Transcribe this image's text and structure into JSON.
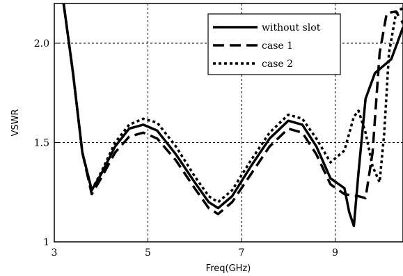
{
  "chart_data": {
    "type": "line",
    "xlabel": "Freq(GHz)",
    "ylabel": "VSWR",
    "xlim": [
      3,
      10.45
    ],
    "ylim": [
      1,
      2.2
    ],
    "x_ticks": [
      3,
      5,
      7,
      9
    ],
    "x_tick_labels": [
      "3",
      "5",
      "7",
      "9"
    ],
    "y_ticks": [
      1,
      1.5,
      2
    ],
    "y_tick_labels": [
      "1",
      "1.5",
      "2.0"
    ],
    "grid": true,
    "legend_position": "top-right",
    "series": [
      {
        "name": "without slot",
        "style": "solid",
        "points": [
          [
            3.2,
            2.2
          ],
          [
            3.4,
            1.85
          ],
          [
            3.6,
            1.45
          ],
          [
            3.8,
            1.26
          ],
          [
            4.0,
            1.34
          ],
          [
            4.3,
            1.48
          ],
          [
            4.6,
            1.57
          ],
          [
            4.9,
            1.59
          ],
          [
            5.2,
            1.56
          ],
          [
            5.6,
            1.44
          ],
          [
            6.0,
            1.3
          ],
          [
            6.3,
            1.2
          ],
          [
            6.5,
            1.17
          ],
          [
            6.8,
            1.23
          ],
          [
            7.2,
            1.38
          ],
          [
            7.6,
            1.52
          ],
          [
            8.0,
            1.61
          ],
          [
            8.3,
            1.59
          ],
          [
            8.6,
            1.48
          ],
          [
            8.9,
            1.32
          ],
          [
            9.2,
            1.27
          ],
          [
            9.3,
            1.15
          ],
          [
            9.4,
            1.08
          ],
          [
            9.5,
            1.35
          ],
          [
            9.65,
            1.72
          ],
          [
            9.85,
            1.85
          ],
          [
            10.05,
            1.89
          ],
          [
            10.2,
            1.92
          ],
          [
            10.45,
            2.08
          ]
        ]
      },
      {
        "name": "case 1",
        "style": "dashed",
        "points": [
          [
            3.2,
            2.2
          ],
          [
            3.4,
            1.85
          ],
          [
            3.6,
            1.45
          ],
          [
            3.8,
            1.24
          ],
          [
            4.0,
            1.32
          ],
          [
            4.3,
            1.45
          ],
          [
            4.6,
            1.53
          ],
          [
            4.9,
            1.55
          ],
          [
            5.2,
            1.52
          ],
          [
            5.6,
            1.41
          ],
          [
            6.0,
            1.27
          ],
          [
            6.3,
            1.17
          ],
          [
            6.5,
            1.14
          ],
          [
            6.8,
            1.2
          ],
          [
            7.2,
            1.34
          ],
          [
            7.6,
            1.48
          ],
          [
            8.0,
            1.57
          ],
          [
            8.3,
            1.55
          ],
          [
            8.6,
            1.44
          ],
          [
            8.9,
            1.29
          ],
          [
            9.2,
            1.24
          ],
          [
            9.5,
            1.23
          ],
          [
            9.65,
            1.22
          ],
          [
            9.8,
            1.45
          ],
          [
            9.95,
            1.95
          ],
          [
            10.1,
            2.15
          ],
          [
            10.3,
            2.16
          ],
          [
            10.45,
            2.1
          ]
        ]
      },
      {
        "name": "case 2",
        "style": "dotted",
        "points": [
          [
            3.2,
            2.2
          ],
          [
            3.4,
            1.85
          ],
          [
            3.6,
            1.45
          ],
          [
            3.8,
            1.26
          ],
          [
            4.0,
            1.35
          ],
          [
            4.3,
            1.5
          ],
          [
            4.6,
            1.59
          ],
          [
            4.9,
            1.62
          ],
          [
            5.2,
            1.6
          ],
          [
            5.6,
            1.48
          ],
          [
            6.0,
            1.33
          ],
          [
            6.3,
            1.23
          ],
          [
            6.5,
            1.2
          ],
          [
            6.8,
            1.26
          ],
          [
            7.2,
            1.41
          ],
          [
            7.6,
            1.55
          ],
          [
            8.0,
            1.64
          ],
          [
            8.3,
            1.62
          ],
          [
            8.6,
            1.52
          ],
          [
            8.9,
            1.4
          ],
          [
            9.2,
            1.46
          ],
          [
            9.4,
            1.63
          ],
          [
            9.5,
            1.66
          ],
          [
            9.65,
            1.55
          ],
          [
            9.8,
            1.38
          ],
          [
            9.95,
            1.3
          ],
          [
            10.05,
            1.55
          ],
          [
            10.15,
            1.95
          ],
          [
            10.3,
            2.15
          ],
          [
            10.45,
            2.18
          ]
        ]
      }
    ]
  }
}
